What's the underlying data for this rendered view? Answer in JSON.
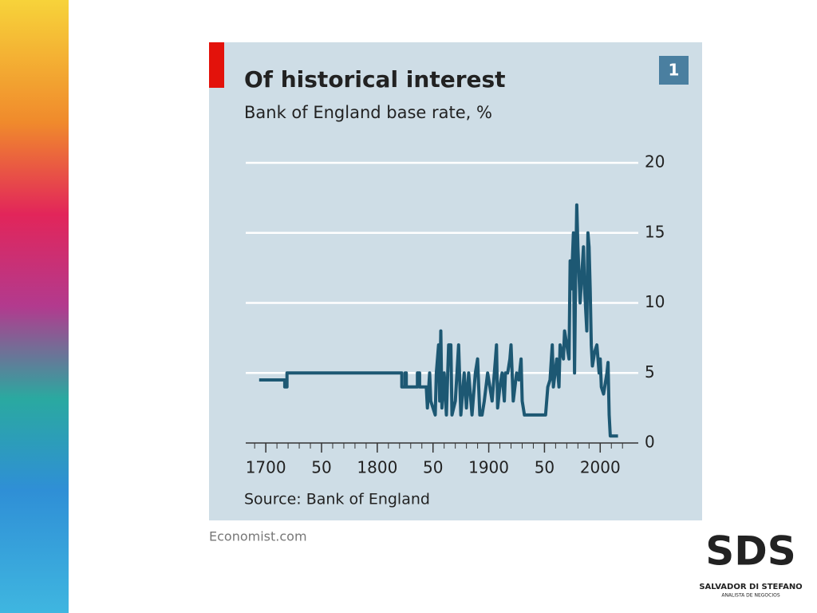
{
  "chart_data": {
    "type": "line",
    "title": "Of historical interest",
    "subtitle": "Bank of England base rate, %",
    "source": "Source: Bank of England",
    "x": [
      1694,
      1717,
      1717,
      1719,
      1719,
      1822,
      1822,
      1825,
      1825,
      1826,
      1826,
      1836,
      1836,
      1838,
      1838,
      1844,
      1845,
      1847,
      1848,
      1852,
      1853,
      1855,
      1856,
      1857,
      1858,
      1860,
      1862,
      1864,
      1866,
      1867,
      1870,
      1873,
      1875,
      1878,
      1880,
      1882,
      1885,
      1888,
      1890,
      1892,
      1894,
      1896,
      1899,
      1901,
      1903,
      1906,
      1907,
      1908,
      1910,
      1912,
      1914,
      1915,
      1917,
      1919,
      1920,
      1921,
      1922,
      1925,
      1927,
      1929,
      1930,
      1932,
      1951,
      1953,
      1955,
      1957,
      1958,
      1961,
      1963,
      1964,
      1967,
      1968,
      1970,
      1972,
      1973,
      1974,
      1976,
      1977,
      1978,
      1979,
      1980,
      1981,
      1982,
      1985,
      1986,
      1988,
      1989,
      1990,
      1991,
      1992,
      1993,
      1995,
      1997,
      1998,
      1999,
      2000,
      2001,
      2003,
      2006,
      2007,
      2008,
      2009,
      2016
    ],
    "values": [
      4.5,
      4.5,
      4,
      4,
      5,
      5,
      4,
      4,
      5,
      5,
      4,
      4,
      5,
      5,
      4,
      4,
      2.5,
      5,
      3,
      2,
      5,
      7,
      3,
      8,
      2.5,
      5,
      2,
      7,
      7,
      2,
      3,
      7,
      2,
      5,
      2.5,
      5,
      2,
      5,
      6,
      2,
      2,
      3,
      5,
      4,
      3,
      6,
      7,
      2.5,
      4,
      5,
      3,
      5,
      5,
      6,
      7,
      5,
      3,
      5,
      4.5,
      6,
      3,
      2,
      2,
      4,
      4.5,
      7,
      4,
      6,
      4,
      7,
      6,
      8,
      7,
      6,
      13,
      11,
      15,
      5,
      12,
      17,
      14,
      12,
      10,
      14,
      11,
      8,
      15,
      14,
      11,
      7,
      5.5,
      6.5,
      7,
      6,
      5,
      6,
      4,
      3.5,
      5,
      5.75,
      2,
      0.5,
      0.5
    ],
    "color": "#1d5873",
    "xlim": [
      1682,
      2027
    ],
    "xticks": [
      1700,
      {
        "value": 1750,
        "label": "50"
      },
      1800,
      {
        "value": 1850,
        "label": "50"
      },
      1900,
      {
        "value": 1950,
        "label": "50"
      },
      2000
    ],
    "xminorticks": [
      1690,
      1700,
      1710,
      1720,
      1730,
      1740,
      1750,
      1760,
      1770,
      1780,
      1790,
      1800,
      1810,
      1820,
      1830,
      1840,
      1850,
      1860,
      1870,
      1880,
      1890,
      1900,
      1910,
      1920,
      1930,
      1940,
      1950,
      1960,
      1970,
      1980,
      1990,
      2000,
      2010,
      2020
    ],
    "ylim": [
      0,
      20
    ],
    "yticks": [
      0,
      5,
      10,
      15,
      20
    ],
    "grid": true
  },
  "badge": "1",
  "credit": "Economist.com",
  "logo": {
    "mark": "SDS",
    "name": "SALVADOR DI STEFANO",
    "tagline": "ANALISTA DE NEGOCIOS"
  }
}
